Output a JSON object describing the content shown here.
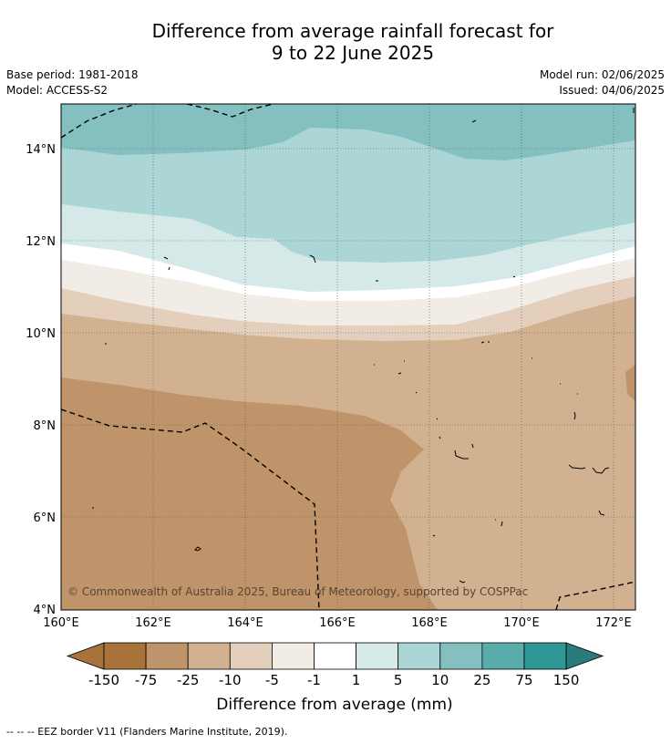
{
  "title": {
    "line1": "Difference from average rainfall forecast for",
    "line2": "9 to 22 June 2025"
  },
  "meta": {
    "base_period": "Base period: 1981-2018",
    "model": "Model: ACCESS-S2",
    "model_run": "Model run: 02/06/2025",
    "issued": "Issued: 04/06/2025"
  },
  "map": {
    "copyright": "© Commonwealth of Australia 2025, Bureau of Meteorology, supported by COSPPac",
    "lon_labels": [
      "160°E",
      "162°E",
      "164°E",
      "166°E",
      "168°E",
      "170°E",
      "172°E"
    ],
    "lat_labels": [
      "14°N",
      "12°N",
      "10°N",
      "8°N",
      "6°N",
      "4°N"
    ]
  },
  "colorbar": {
    "labels": [
      "-150",
      "-75",
      "-25",
      "-10",
      "-5",
      "-1",
      "1",
      "5",
      "10",
      "25",
      "75",
      "150"
    ],
    "colors": [
      "#a8733a",
      "#c0946b",
      "#d2b190",
      "#e3cfbc",
      "#f2ece6",
      "#ffffff",
      "#d5e9e8",
      "#acd6d5",
      "#84c0c0",
      "#58acac",
      "#2f9796",
      "#2a7c7c"
    ],
    "title": "Difference from average (mm)"
  },
  "footer": {
    "legend": "--  --  -- EEZ border V11 (Flanders Marine Institute, 2019)."
  }
}
